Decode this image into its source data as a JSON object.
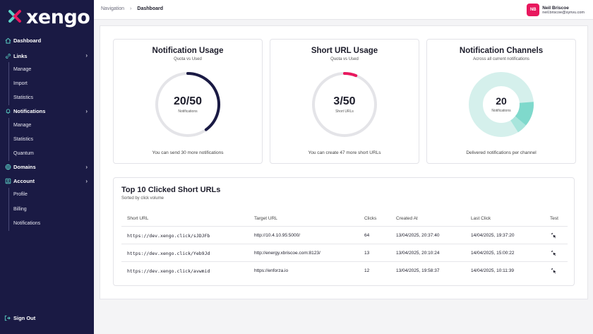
{
  "brand": {
    "name": "xengo",
    "accent": "#e8185e",
    "teal": "#5bd1c6",
    "navy": "#1a1a44"
  },
  "sidebar": {
    "items": [
      {
        "label": "Dashboard",
        "icon": "home-icon"
      },
      {
        "label": "Links",
        "icon": "link-icon",
        "children": [
          "Manage",
          "Import",
          "Statistics"
        ]
      },
      {
        "label": "Notifications",
        "icon": "bell-icon",
        "children": [
          "Manage",
          "Statistics",
          "Quantum"
        ]
      },
      {
        "label": "Domains",
        "icon": "globe-icon",
        "children": []
      },
      {
        "label": "Account",
        "icon": "account-icon",
        "children": [
          "Profile",
          "Billing",
          "Notifications"
        ]
      }
    ],
    "signout": "Sign Out"
  },
  "header": {
    "breadcrumb": {
      "root": "Navigation",
      "current": "Dashboard"
    },
    "user": {
      "initials": "NB",
      "name": "Neil Briscoe",
      "email": "neil.briscoe@synvu.com"
    }
  },
  "cards": {
    "notification_usage": {
      "title": "Notification Usage",
      "subtitle": "Quota vs Used",
      "value": "20/50",
      "label": "Notifications",
      "used": 20,
      "quota": 50,
      "footer": "You can send 30 more notifications"
    },
    "short_url_usage": {
      "title": "Short URL Usage",
      "subtitle": "Quota vs Used",
      "value": "3/50",
      "label": "Short URLs",
      "used": 3,
      "quota": 50,
      "footer": "You can create 47 more short URLs"
    },
    "notification_channels": {
      "title": "Notification Channels",
      "subtitle": "Across all current notifications",
      "value": "20",
      "label": "Notifications",
      "footer": "Delivered notifications per channel"
    }
  },
  "top_urls": {
    "title": "Top 10 Clicked Short URLs",
    "subtitle": "Sorted by click volume",
    "columns": [
      "Short URL",
      "Target URL",
      "Clicks",
      "Created At",
      "Last Click",
      "Test"
    ],
    "rows": [
      {
        "short": "https://dev.xengo.click/sJDJFb",
        "target": "http://10.4.10.95:5000/",
        "clicks": "64",
        "created": "13/04/2025, 20:37:40",
        "last": "14/04/2025, 19:37:20"
      },
      {
        "short": "https://dev.xengo.click/Yeb9Jd",
        "target": "http://energy.xbriscoe.com:8123/",
        "clicks": "13",
        "created": "13/04/2025, 20:10:24",
        "last": "14/04/2025, 15:00:22"
      },
      {
        "short": "https://dev.xengo.click/avwmid",
        "target": "https://enforza.io",
        "clicks": "12",
        "created": "13/04/2025, 19:58:37",
        "last": "14/04/2025, 10:11:39"
      }
    ]
  }
}
